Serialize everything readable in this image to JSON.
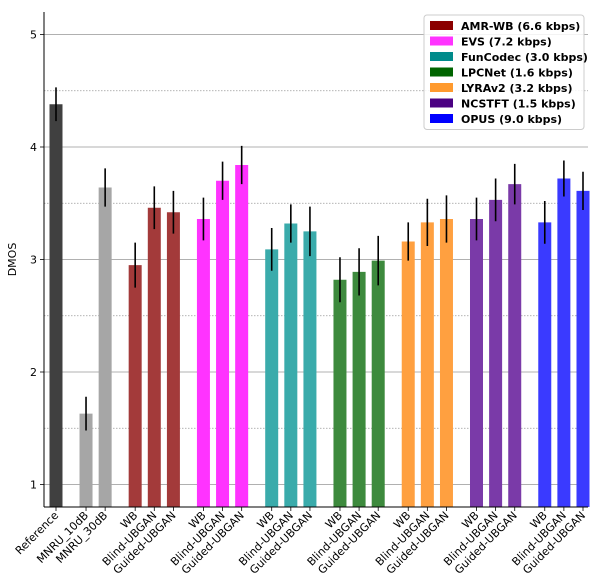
{
  "chart_data": {
    "type": "bar",
    "title": "",
    "xlabel": "",
    "ylabel": "DMOS",
    "ylim": [
      0.8,
      5.2
    ],
    "yticks": [
      1,
      2,
      3,
      4,
      5
    ],
    "grid": "y-major solid, y-minor dotted",
    "legend_position": "top-right",
    "bars": [
      {
        "label": "Reference",
        "value": 4.38,
        "err": 0.15,
        "color": "#404040",
        "group": "reference"
      },
      {
        "label": "MNRU_10dB",
        "value": 1.63,
        "err": 0.15,
        "color": "#a6a6a6",
        "group": "mnru"
      },
      {
        "label": "MNRU_30dB",
        "value": 3.64,
        "err": 0.17,
        "color": "#a6a6a6",
        "group": "mnru"
      },
      {
        "label": "WB",
        "value": 2.95,
        "err": 0.2,
        "color": "#a33a3a",
        "group": "amrwb"
      },
      {
        "label": "Blind-UBGAN",
        "value": 3.46,
        "err": 0.19,
        "color": "#a33a3a",
        "group": "amrwb"
      },
      {
        "label": "Guided-UBGAN",
        "value": 3.42,
        "err": 0.19,
        "color": "#a33a3a",
        "group": "amrwb"
      },
      {
        "label": "WB",
        "value": 3.36,
        "err": 0.19,
        "color": "#ff33ff",
        "group": "evs"
      },
      {
        "label": "Blind-UBGAN",
        "value": 3.7,
        "err": 0.17,
        "color": "#ff33ff",
        "group": "evs"
      },
      {
        "label": "Guided-UBGAN",
        "value": 3.84,
        "err": 0.17,
        "color": "#ff33ff",
        "group": "evs"
      },
      {
        "label": "WB",
        "value": 3.09,
        "err": 0.19,
        "color": "#3aabab",
        "group": "funcodec"
      },
      {
        "label": "Blind-UBGAN",
        "value": 3.32,
        "err": 0.17,
        "color": "#3aabab",
        "group": "funcodec"
      },
      {
        "label": "Guided-UBGAN",
        "value": 3.25,
        "err": 0.22,
        "color": "#3aabab",
        "group": "funcodec"
      },
      {
        "label": "WB",
        "value": 2.82,
        "err": 0.2,
        "color": "#3d8a3d",
        "group": "lpcnet"
      },
      {
        "label": "Blind-UBGAN",
        "value": 2.89,
        "err": 0.21,
        "color": "#3d8a3d",
        "group": "lpcnet"
      },
      {
        "label": "Guided-UBGAN",
        "value": 2.99,
        "err": 0.22,
        "color": "#3d8a3d",
        "group": "lpcnet"
      },
      {
        "label": "WB",
        "value": 3.16,
        "err": 0.17,
        "color": "#ffa040",
        "group": "lyra"
      },
      {
        "label": "Blind-UBGAN",
        "value": 3.33,
        "err": 0.21,
        "color": "#ffa040",
        "group": "lyra"
      },
      {
        "label": "Guided-UBGAN",
        "value": 3.36,
        "err": 0.21,
        "color": "#ffa040",
        "group": "lyra"
      },
      {
        "label": "WB",
        "value": 3.36,
        "err": 0.19,
        "color": "#7a3aa8",
        "group": "ncstft"
      },
      {
        "label": "Blind-UBGAN",
        "value": 3.53,
        "err": 0.19,
        "color": "#7a3aa8",
        "group": "ncstft"
      },
      {
        "label": "Guided-UBGAN",
        "value": 3.67,
        "err": 0.18,
        "color": "#7a3aa8",
        "group": "ncstft"
      },
      {
        "label": "WB",
        "value": 3.33,
        "err": 0.19,
        "color": "#3a3aff",
        "group": "opus"
      },
      {
        "label": "Blind-UBGAN",
        "value": 3.72,
        "err": 0.16,
        "color": "#3a3aff",
        "group": "opus"
      },
      {
        "label": "Guided-UBGAN",
        "value": 3.61,
        "err": 0.17,
        "color": "#3a3aff",
        "group": "opus"
      }
    ],
    "legend": [
      {
        "name": "AMR-WB (6.6 kbps)",
        "color": "#8b0000"
      },
      {
        "name": "EVS (7.2 kbps)",
        "color": "#ff33ff"
      },
      {
        "name": "FunCodec (3.0 kbps)",
        "color": "#008b8b"
      },
      {
        "name": "LPCNet (1.6 kbps)",
        "color": "#006400"
      },
      {
        "name": "LYRAv2 (3.2 kbps)",
        "color": "#ff9a2e"
      },
      {
        "name": "NCSTFT (1.5 kbps)",
        "color": "#4b0082"
      },
      {
        "name": "OPUS (9.0 kbps)",
        "color": "#0000ff"
      }
    ]
  }
}
